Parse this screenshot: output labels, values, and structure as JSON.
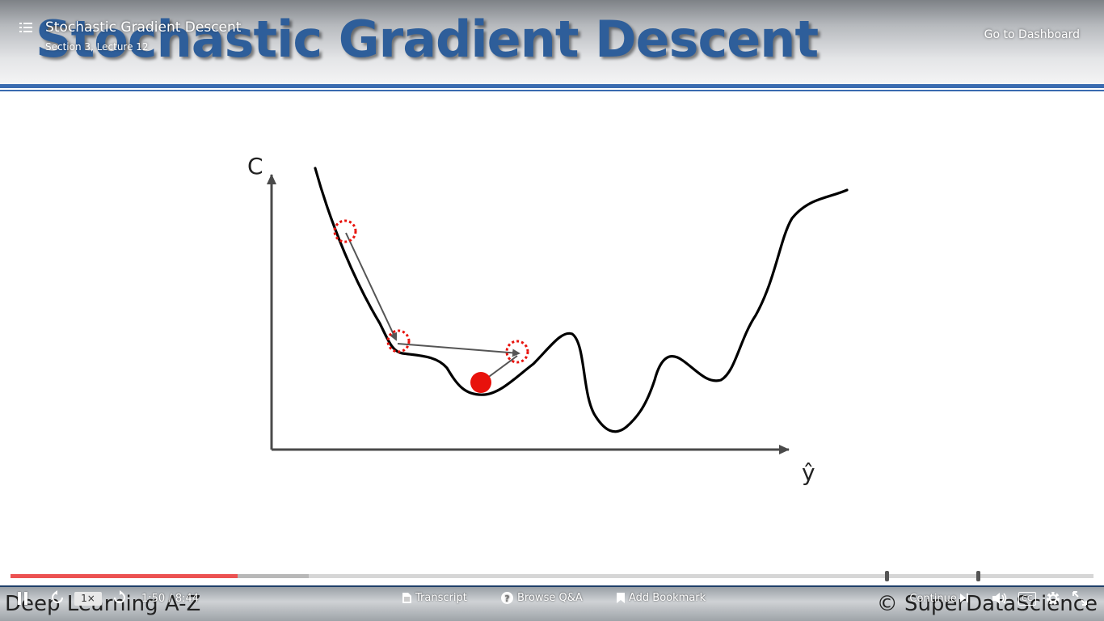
{
  "slide": {
    "title": "Stochastic Gradient Descent",
    "y_axis_label": "C",
    "x_axis_label": "ŷ",
    "footer_left": "Deep Learning A-Z",
    "footer_right": "© SuperDataScience"
  },
  "header": {
    "lecture_title": "Stochastic Gradient Descent",
    "lecture_subtitle": "Section 3, Lecture 12",
    "dashboard_link": "Go to Dashboard"
  },
  "player": {
    "speed": "1×",
    "time": "1:50 / 8:44",
    "progress_fraction": 0.21,
    "buffered_fraction": 0.275,
    "transcript_label": "Transcript",
    "qa_label": "Browse Q&A",
    "bookmark_label": "Add Bookmark",
    "continue_label": "Continue",
    "cc_label": "CC"
  },
  "colors": {
    "title_blue": "#2e5e9a",
    "progress_red": "#ec5252",
    "ball_red": "#e8120c",
    "header_line": "#3a6bb0"
  }
}
